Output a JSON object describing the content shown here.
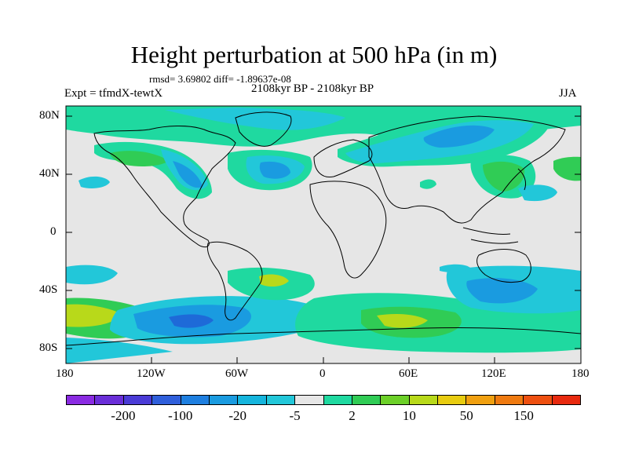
{
  "title": "Height perturbation at 500 hPa (in m)",
  "stats": "rmsd= 3.69802 diff= -1.89637e-08",
  "experiment": "Expt = tfmdX-tewtX",
  "period": "2108kyr BP - 2108kyr BP",
  "season": "JJA",
  "lat_ticks": [
    "80N",
    "40N",
    "0",
    "40S",
    "80S"
  ],
  "lon_ticks": [
    "180",
    "120W",
    "60W",
    "0",
    "60E",
    "120E",
    "180"
  ],
  "colorbar": {
    "colors": [
      "#8a2be2",
      "#6a2ed8",
      "#4a3bd6",
      "#2f5fdb",
      "#1e7fe0",
      "#1a9be0",
      "#15b5dd",
      "#22c7d9",
      "#e6e6e6",
      "#1fd9a0",
      "#30cc55",
      "#6cd028",
      "#b8d91a",
      "#e8cc10",
      "#f0a010",
      "#ef7a10",
      "#ee5010",
      "#e82a0f"
    ],
    "labels": [
      "-200",
      "-100",
      "-20",
      "-5",
      "2",
      "10",
      "50",
      "150"
    ]
  },
  "map": {
    "background_color": "#e6e6e6",
    "contour_colors": {
      "deep_blue": "#1e6ad8",
      "blue": "#1a9be0",
      "cyan": "#22c7d9",
      "green_cyan": "#1fd9a0",
      "green": "#30cc55",
      "lime": "#b8d91a"
    }
  }
}
